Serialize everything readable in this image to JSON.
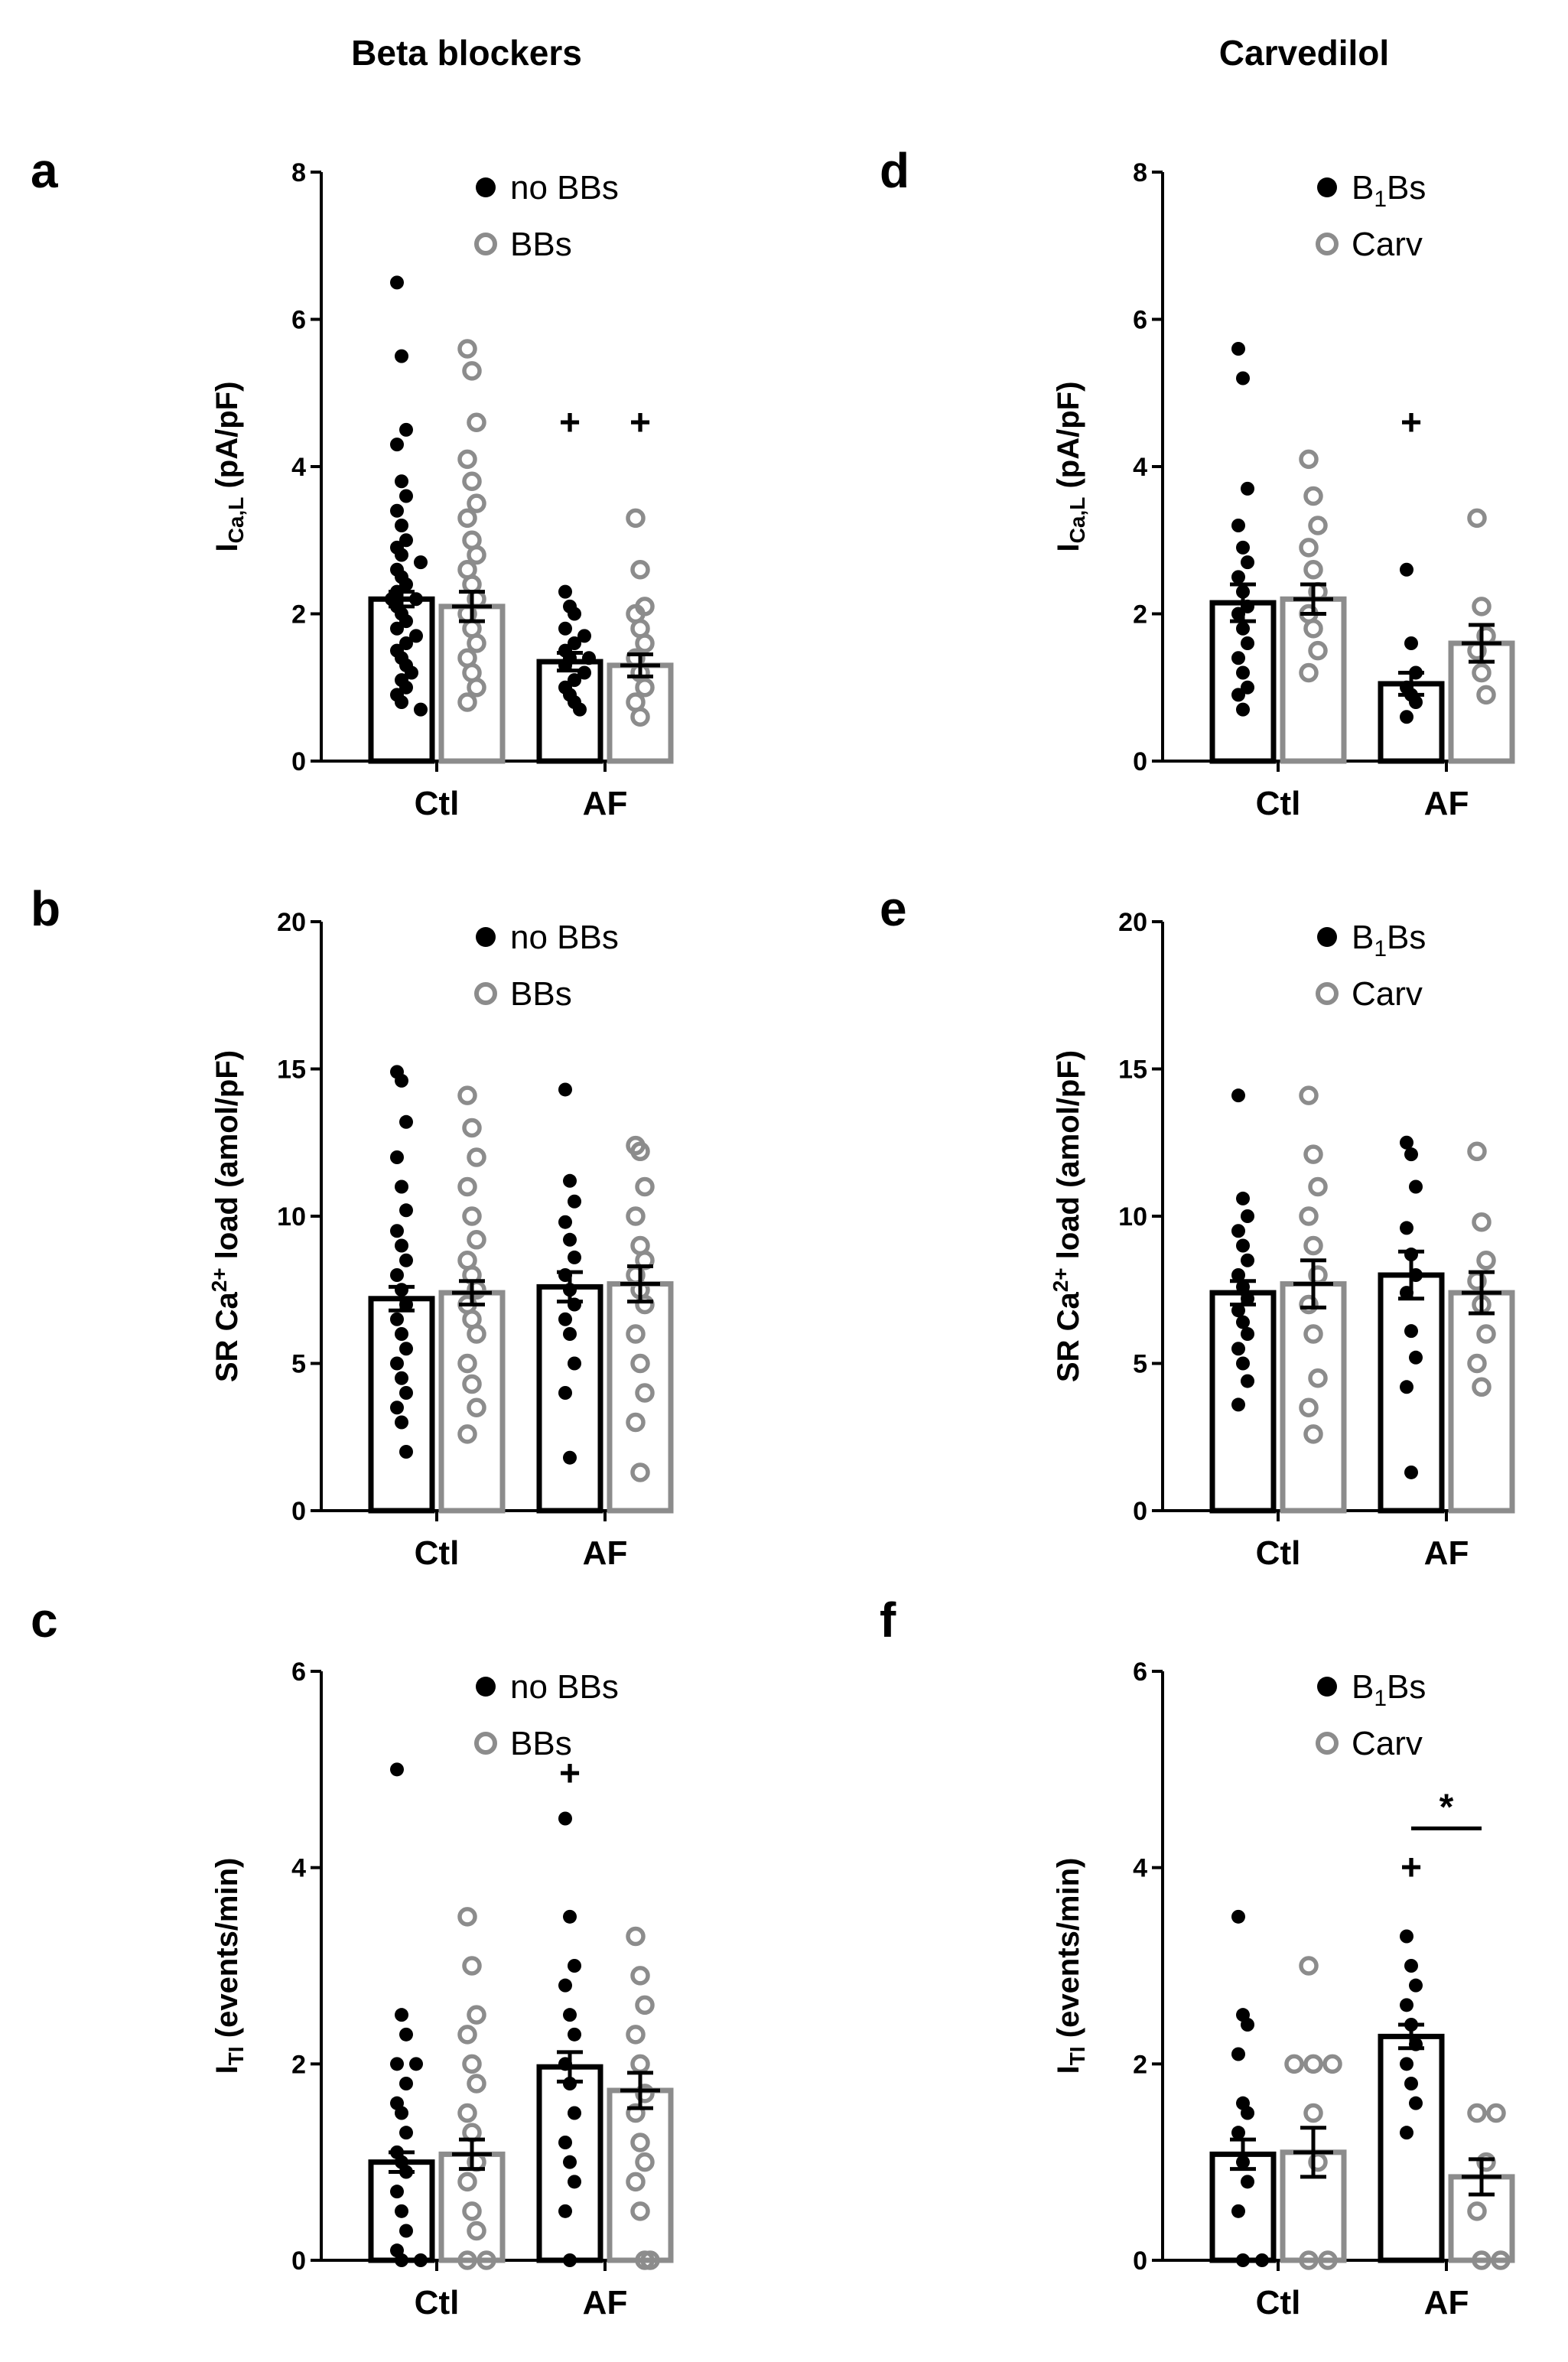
{
  "figure": {
    "column_titles": [
      "Beta blockers",
      "Carvedilol"
    ]
  },
  "colors": {
    "black": "#000000",
    "gray": "#8c8c8c"
  },
  "chart_data": [
    {
      "panel": "a",
      "type": "bar",
      "ylabel": "ICa,L (pA/pF)",
      "ylim": [
        0,
        8
      ],
      "yticks": [
        0,
        2,
        4,
        6,
        8
      ],
      "categories": [
        "Ctl",
        "AF"
      ],
      "legend": [
        "no BBs",
        "BBs"
      ],
      "series": [
        {
          "name": "no BBs",
          "values": [
            2.2,
            1.35
          ],
          "sem": [
            0.1,
            0.12
          ],
          "points": [
            [
              6.5,
              5.5,
              4.5,
              4.3,
              3.8,
              3.6,
              3.4,
              3.2,
              3.0,
              2.9,
              2.8,
              2.7,
              2.6,
              2.5,
              2.4,
              2.3,
              2.2,
              2.2,
              2.1,
              2.0,
              1.9,
              1.8,
              1.7,
              1.6,
              1.5,
              1.4,
              1.3,
              1.2,
              1.1,
              1.0,
              0.9,
              0.8,
              0.7
            ],
            [
              2.3,
              2.1,
              2.0,
              1.8,
              1.7,
              1.6,
              1.5,
              1.4,
              1.4,
              1.3,
              1.2,
              1.1,
              1.0,
              0.9,
              0.8,
              0.7
            ]
          ]
        },
        {
          "name": "BBs",
          "values": [
            2.1,
            1.3
          ],
          "sem": [
            0.2,
            0.15
          ],
          "points": [
            [
              5.6,
              5.3,
              4.6,
              4.1,
              3.8,
              3.5,
              3.3,
              3.0,
              2.8,
              2.6,
              2.4,
              2.2,
              2.0,
              1.8,
              1.6,
              1.4,
              1.2,
              1.0,
              0.8
            ],
            [
              3.3,
              2.6,
              2.1,
              2.0,
              1.8,
              1.6,
              1.4,
              1.2,
              1.0,
              0.8,
              0.6
            ]
          ]
        }
      ],
      "annotations": [
        {
          "text": "+",
          "category": "AF",
          "series": 0,
          "y": 4.6
        },
        {
          "text": "+",
          "category": "AF",
          "series": 1,
          "y": 4.6
        }
      ]
    },
    {
      "panel": "d",
      "type": "bar",
      "ylabel": "ICa,L (pA/pF)",
      "ylim": [
        0,
        8
      ],
      "yticks": [
        0,
        2,
        4,
        6,
        8
      ],
      "categories": [
        "Ctl",
        "AF"
      ],
      "legend": [
        "B1Bs",
        "Carv"
      ],
      "series": [
        {
          "name": "B1Bs",
          "values": [
            2.15,
            1.05
          ],
          "sem": [
            0.25,
            0.15
          ],
          "points": [
            [
              5.6,
              5.2,
              3.7,
              3.2,
              2.9,
              2.7,
              2.5,
              2.3,
              2.1,
              2.0,
              1.8,
              1.6,
              1.4,
              1.2,
              1.0,
              0.9,
              0.7
            ],
            [
              2.6,
              1.6,
              1.2,
              1.0,
              0.9,
              0.8,
              0.6
            ]
          ]
        },
        {
          "name": "Carv",
          "values": [
            2.2,
            1.6
          ],
          "sem": [
            0.2,
            0.25
          ],
          "points": [
            [
              4.1,
              3.6,
              3.2,
              2.9,
              2.6,
              2.3,
              2.0,
              1.8,
              1.5,
              1.2
            ],
            [
              3.3,
              2.1,
              1.7,
              1.5,
              1.2,
              0.9
            ]
          ]
        }
      ],
      "annotations": [
        {
          "text": "+",
          "category": "AF",
          "series": 0,
          "y": 4.6
        }
      ]
    },
    {
      "panel": "b",
      "type": "bar",
      "ylabel": "SR Ca2+ load (amol/pF)",
      "ylim": [
        0,
        20
      ],
      "yticks": [
        0,
        5,
        10,
        15,
        20
      ],
      "categories": [
        "Ctl",
        "AF"
      ],
      "legend": [
        "no BBs",
        "BBs"
      ],
      "series": [
        {
          "name": "no BBs",
          "values": [
            7.2,
            7.6
          ],
          "sem": [
            0.4,
            0.5
          ],
          "points": [
            [
              14.9,
              14.6,
              13.2,
              12.0,
              11.0,
              10.2,
              9.5,
              9.0,
              8.5,
              8.0,
              7.5,
              7.0,
              6.5,
              6.0,
              5.5,
              5.0,
              4.5,
              4.0,
              3.5,
              3.0,
              2.0
            ],
            [
              14.3,
              11.2,
              10.5,
              9.8,
              9.2,
              8.6,
              8.0,
              7.5,
              7.0,
              6.5,
              6.0,
              5.0,
              4.0,
              1.8
            ]
          ]
        },
        {
          "name": "BBs",
          "values": [
            7.4,
            7.7
          ],
          "sem": [
            0.4,
            0.6
          ],
          "points": [
            [
              14.1,
              13.0,
              12.0,
              11.0,
              10.0,
              9.2,
              8.5,
              8.0,
              7.5,
              7.0,
              6.5,
              6.0,
              5.0,
              4.3,
              3.5,
              2.6
            ],
            [
              12.4,
              12.2,
              11.0,
              10.0,
              9.0,
              8.5,
              8.0,
              7.5,
              7.0,
              6.0,
              5.0,
              4.0,
              3.0,
              1.3
            ]
          ]
        }
      ],
      "annotations": []
    },
    {
      "panel": "e",
      "type": "bar",
      "ylabel": "SR Ca2+ load (amol/pF)",
      "ylim": [
        0,
        20
      ],
      "yticks": [
        0,
        5,
        10,
        15,
        20
      ],
      "categories": [
        "Ctl",
        "AF"
      ],
      "legend": [
        "B1Bs",
        "Carv"
      ],
      "series": [
        {
          "name": "B1Bs",
          "values": [
            7.4,
            8.0
          ],
          "sem": [
            0.4,
            0.8
          ],
          "points": [
            [
              14.1,
              10.6,
              10.0,
              9.5,
              9.0,
              8.5,
              8.0,
              7.6,
              7.2,
              6.8,
              6.4,
              6.0,
              5.5,
              5.0,
              4.4,
              3.6
            ],
            [
              12.5,
              12.1,
              11.0,
              9.6,
              8.7,
              8.0,
              7.4,
              6.1,
              5.2,
              4.2,
              1.3
            ]
          ]
        },
        {
          "name": "Carv",
          "values": [
            7.7,
            7.4
          ],
          "sem": [
            0.8,
            0.7
          ],
          "points": [
            [
              14.1,
              12.1,
              11.0,
              10.0,
              9.0,
              8.0,
              7.0,
              6.0,
              4.5,
              3.5,
              2.6
            ],
            [
              12.2,
              9.8,
              8.5,
              7.8,
              7.0,
              6.0,
              5.0,
              4.2
            ]
          ]
        }
      ],
      "annotations": []
    },
    {
      "panel": "c",
      "type": "bar",
      "ylabel": "ITI (events/min)",
      "ylim": [
        0,
        6
      ],
      "yticks": [
        0,
        2,
        4,
        6
      ],
      "categories": [
        "Ctl",
        "AF"
      ],
      "legend": [
        "no BBs",
        "BBs"
      ],
      "series": [
        {
          "name": "no BBs",
          "values": [
            1.0,
            1.97
          ],
          "sem": [
            0.1,
            0.15
          ],
          "points": [
            [
              5.0,
              2.5,
              2.3,
              2.0,
              2.0,
              1.8,
              1.6,
              1.5,
              1.3,
              1.1,
              1.0,
              0.9,
              0.7,
              0.5,
              0.3,
              0.1,
              0.0,
              0.0
            ],
            [
              4.5,
              3.5,
              3.0,
              2.8,
              2.5,
              2.3,
              2.0,
              1.8,
              1.5,
              1.2,
              1.0,
              0.8,
              0.5,
              0.0
            ]
          ]
        },
        {
          "name": "BBs",
          "values": [
            1.08,
            1.73
          ],
          "sem": [
            0.15,
            0.18
          ],
          "points": [
            [
              3.5,
              3.0,
              2.5,
              2.3,
              2.0,
              1.8,
              1.5,
              1.3,
              1.0,
              0.8,
              0.5,
              0.3,
              0.0,
              0.0
            ],
            [
              3.3,
              2.9,
              2.6,
              2.3,
              2.0,
              1.7,
              1.5,
              1.2,
              1.0,
              0.8,
              0.5,
              0.0,
              0.0
            ]
          ]
        }
      ],
      "annotations": [
        {
          "text": "+",
          "category": "AF",
          "series": 0,
          "y": 4.96
        }
      ]
    },
    {
      "panel": "f",
      "type": "bar",
      "ylabel": "ITI (events/min)",
      "ylim": [
        0,
        6
      ],
      "yticks": [
        0,
        2,
        4,
        6
      ],
      "categories": [
        "Ctl",
        "AF"
      ],
      "legend": [
        "B1Bs",
        "Carv"
      ],
      "series": [
        {
          "name": "B1Bs",
          "values": [
            1.08,
            2.28
          ],
          "sem": [
            0.15,
            0.12
          ],
          "points": [
            [
              3.5,
              2.5,
              2.4,
              2.1,
              1.6,
              1.5,
              1.3,
              1.0,
              0.8,
              0.5,
              0.0,
              0.0
            ],
            [
              3.3,
              3.0,
              2.8,
              2.6,
              2.4,
              2.2,
              2.0,
              1.8,
              1.6,
              1.3
            ]
          ]
        },
        {
          "name": "Carv",
          "values": [
            1.1,
            0.85
          ],
          "sem": [
            0.25,
            0.18
          ],
          "points": [
            [
              3.0,
              2.0,
              2.0,
              2.0,
              1.5,
              1.0,
              0.0,
              0.0
            ],
            [
              1.5,
              1.5,
              1.0,
              0.5,
              0.0,
              0.0
            ]
          ]
        }
      ],
      "annotations": [
        {
          "text": "+",
          "category": "AF",
          "series": 0,
          "y": 4.0
        },
        {
          "text": "*",
          "category": "AF",
          "bracket": true,
          "y": 4.4
        }
      ]
    }
  ]
}
